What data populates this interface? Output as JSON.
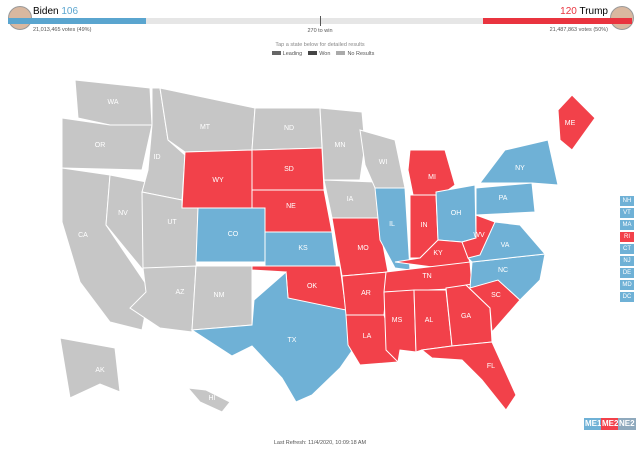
{
  "header": {
    "left": {
      "name": "Biden",
      "electoral_votes": "106",
      "votes": "21,013,465 votes (49%)",
      "color": "#5aa5cf"
    },
    "right": {
      "name": "Trump",
      "electoral_votes": "120",
      "votes": "21,487,863 votes (50%)",
      "color": "#e9343f"
    },
    "threshold": "270 to win",
    "instruction": "Tap a state below for detailed results",
    "legend": [
      {
        "label": "Leading",
        "color": "#666666"
      },
      {
        "label": "Won",
        "color": "#444444"
      },
      {
        "label": "No Results",
        "color": "#aaaaaa"
      }
    ]
  },
  "map": {
    "states": [
      {
        "label": "WA",
        "color": "#c6c6c6"
      },
      {
        "label": "OR",
        "color": "#c6c6c6"
      },
      {
        "label": "CA",
        "color": "#c6c6c6"
      },
      {
        "label": "NV",
        "color": "#c6c6c6"
      },
      {
        "label": "ID",
        "color": "#c6c6c6"
      },
      {
        "label": "MT",
        "color": "#c6c6c6"
      },
      {
        "label": "WY",
        "color": "#f2414a"
      },
      {
        "label": "UT",
        "color": "#c6c6c6"
      },
      {
        "label": "CO",
        "color": "#6fb1d6"
      },
      {
        "label": "AZ",
        "color": "#c6c6c6"
      },
      {
        "label": "NM",
        "color": "#c6c6c6"
      },
      {
        "label": "ND",
        "color": "#c6c6c6"
      },
      {
        "label": "SD",
        "color": "#f2414a"
      },
      {
        "label": "NE",
        "color": "#f2414a"
      },
      {
        "label": "KS",
        "color": "#6fb1d6"
      },
      {
        "label": "OK",
        "color": "#f2414a"
      },
      {
        "label": "TX",
        "color": "#6fb1d6"
      },
      {
        "label": "MN",
        "color": "#c6c6c6"
      },
      {
        "label": "IA",
        "color": "#c6c6c6"
      },
      {
        "label": "MO",
        "color": "#f2414a"
      },
      {
        "label": "AR",
        "color": "#f2414a"
      },
      {
        "label": "LA",
        "color": "#f2414a"
      },
      {
        "label": "WI",
        "color": "#c6c6c6"
      },
      {
        "label": "IL",
        "color": "#6fb1d6"
      },
      {
        "label": "MI",
        "color": "#f2414a"
      },
      {
        "label": "IN",
        "color": "#f2414a"
      },
      {
        "label": "OH",
        "color": "#6fb1d6"
      },
      {
        "label": "KY",
        "color": "#f2414a"
      },
      {
        "label": "TN",
        "color": "#f2414a"
      },
      {
        "label": "MS",
        "color": "#f2414a"
      },
      {
        "label": "AL",
        "color": "#f2414a"
      },
      {
        "label": "GA",
        "color": "#f2414a"
      },
      {
        "label": "FL",
        "color": "#f2414a"
      },
      {
        "label": "SC",
        "color": "#f2414a"
      },
      {
        "label": "NC",
        "color": "#6fb1d6"
      },
      {
        "label": "VA",
        "color": "#6fb1d6"
      },
      {
        "label": "WV",
        "color": "#f2414a"
      },
      {
        "label": "PA",
        "color": "#6fb1d6"
      },
      {
        "label": "NY",
        "color": "#6fb1d6"
      },
      {
        "label": "ME",
        "color": "#f2414a"
      },
      {
        "label": "AK",
        "color": "#c6c6c6"
      },
      {
        "label": "HI",
        "color": "#c6c6c6"
      }
    ],
    "small_states": [
      {
        "label": "NH",
        "color": "#6fb1d6"
      },
      {
        "label": "VT",
        "color": "#6fb1d6"
      },
      {
        "label": "MA",
        "color": "#6fb1d6"
      },
      {
        "label": "RI",
        "color": "#f2414a"
      },
      {
        "label": "CT",
        "color": "#6fb1d6"
      },
      {
        "label": "NJ",
        "color": "#6fb1d6"
      },
      {
        "label": "DE",
        "color": "#6fb1d6"
      },
      {
        "label": "MD",
        "color": "#6fb1d6"
      },
      {
        "label": "DC",
        "color": "#6fb1d6"
      }
    ],
    "districts": [
      {
        "label": "ME1",
        "color": "#6fb1d6"
      },
      {
        "label": "ME2",
        "color": "#f2414a"
      },
      {
        "label": "NE2",
        "color": "#8fa9bd"
      }
    ]
  },
  "footer": "Last Refresh: 11/4/2020, 10:09:18 AM"
}
